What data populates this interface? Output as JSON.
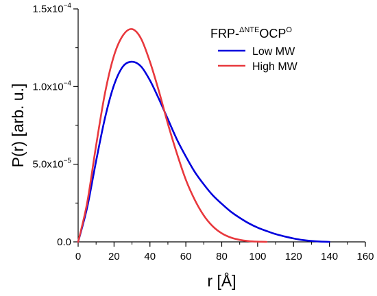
{
  "chart_data": {
    "type": "line",
    "xlabel": "r [Å]",
    "ylabel": "P(r) [arb. u.]",
    "xlim": [
      0,
      160
    ],
    "ylim": [
      0,
      0.00015
    ],
    "x_ticks": [
      0,
      20,
      40,
      60,
      80,
      100,
      120,
      140,
      160
    ],
    "x_tick_labels": [
      "0",
      "20",
      "40",
      "60",
      "80",
      "100",
      "120",
      "140",
      "160"
    ],
    "y_ticks": [
      0,
      5e-05,
      0.0001,
      0.00015
    ],
    "y_tick_labels": [
      {
        "mantissa": "0.0",
        "exp": ""
      },
      {
        "mantissa": "5.0x10",
        "exp": "−5"
      },
      {
        "mantissa": "1.0x10",
        "exp": "−4"
      },
      {
        "mantissa": "1.5x10",
        "exp": "−4"
      }
    ],
    "legend": {
      "title_prefix": "FRP-",
      "title_sup": "ΔNTE",
      "title_main": "OCP",
      "title_sup2": "O",
      "placement": "top-right"
    },
    "grid": false,
    "series": [
      {
        "name": "Low MW",
        "color": "#0000dd",
        "x": [
          0,
          5,
          10,
          15,
          20,
          25,
          30,
          35,
          40,
          45,
          50,
          55,
          60,
          65,
          70,
          75,
          80,
          85,
          90,
          95,
          100,
          105,
          110,
          115,
          120,
          125,
          130,
          135,
          140
        ],
        "y": [
          0,
          2.2e-05,
          5.2e-05,
          8e-05,
          0.000101,
          0.000113,
          0.000116,
          0.000113,
          0.000104,
          9.2e-05,
          7.9e-05,
          6.6e-05,
          5.5e-05,
          4.5e-05,
          3.7e-05,
          3e-05,
          2.45e-05,
          1.95e-05,
          1.55e-05,
          1.2e-05,
          9.2e-06,
          7e-06,
          5e-06,
          3.5e-06,
          2.2e-06,
          1.2e-06,
          6e-07,
          2e-07,
          0
        ]
      },
      {
        "name": "High MW",
        "color": "#e8383d",
        "x": [
          0,
          5,
          10,
          15,
          20,
          25,
          30,
          35,
          40,
          45,
          50,
          55,
          60,
          65,
          70,
          75,
          80,
          85,
          90,
          95,
          100,
          105
        ],
        "y": [
          0,
          2.5e-05,
          6.2e-05,
          9.6e-05,
          0.00012,
          0.000133,
          0.000137,
          0.000131,
          0.000116,
          9.7e-05,
          7.6e-05,
          5.7e-05,
          4e-05,
          2.7e-05,
          1.7e-05,
          1e-05,
          5.5e-06,
          2.8e-06,
          1.3e-06,
          5e-07,
          1.5e-07,
          0
        ]
      }
    ]
  }
}
